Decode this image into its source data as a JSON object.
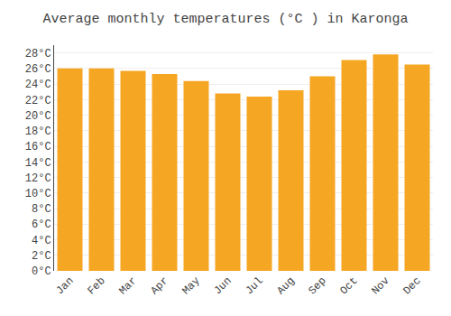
{
  "chart_data": {
    "type": "bar",
    "title": "Average monthly temperatures (°C ) in Karonga",
    "categories": [
      "Jan",
      "Feb",
      "Mar",
      "Apr",
      "May",
      "Jun",
      "Jul",
      "Aug",
      "Sep",
      "Oct",
      "Nov",
      "Dec"
    ],
    "values": [
      26.0,
      26.0,
      25.7,
      25.3,
      24.4,
      22.8,
      22.4,
      23.2,
      25.0,
      27.1,
      27.8,
      26.5
    ],
    "color": "#F5A623",
    "ylim": [
      0,
      29
    ],
    "yticks": [
      {
        "value": 0,
        "label": "0°C"
      },
      {
        "value": 2,
        "label": "2°C"
      },
      {
        "value": 4,
        "label": "4°C"
      },
      {
        "value": 6,
        "label": "6°C"
      },
      {
        "value": 8,
        "label": "8°C"
      },
      {
        "value": 10,
        "label": "10°C"
      },
      {
        "value": 12,
        "label": "12°C"
      },
      {
        "value": 14,
        "label": "14°C"
      },
      {
        "value": 16,
        "label": "16°C"
      },
      {
        "value": 18,
        "label": "18°C"
      },
      {
        "value": 20,
        "label": "20°C"
      },
      {
        "value": 22,
        "label": "22°C"
      },
      {
        "value": 24,
        "label": "24°C"
      },
      {
        "value": 26,
        "label": "26°C"
      },
      {
        "value": 28,
        "label": "28°C"
      }
    ],
    "grid": true
  }
}
